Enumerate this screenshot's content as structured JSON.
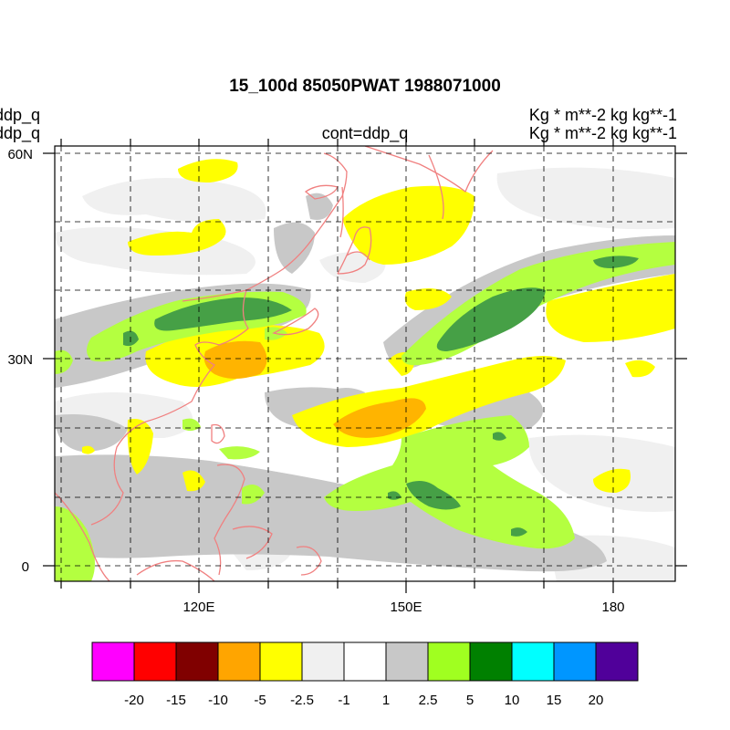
{
  "header": {
    "title": "15_100d 85050PWAT  1988071000",
    "left_line1": "ddp_q",
    "left_line2": "ddp_q",
    "center_label": "cont=ddp_q",
    "right_line1": "Kg  * m**-2 kg kg**-1",
    "right_line2": "Kg  * m**-2 kg kg**-1"
  },
  "map": {
    "lat_labels": [
      "60N",
      "30N",
      "0"
    ],
    "lon_labels": [
      "120E",
      "150E",
      "180"
    ],
    "coastline_color": "#f08080",
    "grid_style": "dashed"
  },
  "colorbar": {
    "labels": [
      "-20",
      "-15",
      "-10",
      "-5",
      "-2.5",
      "-1",
      "1",
      "2.5",
      "5",
      "10",
      "15",
      "20"
    ],
    "colors": [
      "#ff00ff",
      "#ff0000",
      "#800000",
      "#ffa500",
      "#ffff00",
      "#f0f0f0",
      "#ffffff",
      "#c8c8c8",
      "#a0ff20",
      "#008000",
      "#00ffff",
      "#0096ff",
      "#50009a"
    ]
  }
}
